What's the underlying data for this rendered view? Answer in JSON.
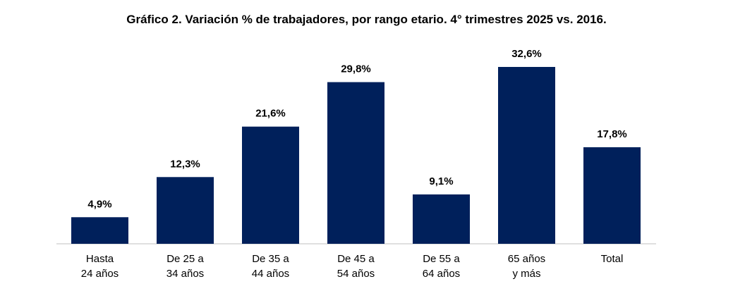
{
  "chart_data": {
    "type": "bar",
    "title": "Gráfico 2. Variación % de trabajadores, por rango etario. 4° trimestres 2025 vs. 2016.",
    "categories": [
      [
        "Hasta",
        "24 años"
      ],
      [
        "De 25 a",
        "34 años"
      ],
      [
        "De 35 a",
        "44 años"
      ],
      [
        "De 45 a",
        "54 años"
      ],
      [
        "De 55 a",
        "64 años"
      ],
      [
        "65 años",
        "y más"
      ],
      [
        "Total"
      ]
    ],
    "values": [
      4.9,
      12.3,
      21.6,
      29.8,
      9.1,
      32.6,
      17.8
    ],
    "labels": [
      "4,9%",
      "12,3%",
      "21,6%",
      "29,8%",
      "9,1%",
      "32,6%",
      "17,8%"
    ],
    "xlabel": "",
    "ylabel": "",
    "ylim": [
      0,
      32.6
    ],
    "grid": false,
    "bar_color": "#00205b"
  }
}
